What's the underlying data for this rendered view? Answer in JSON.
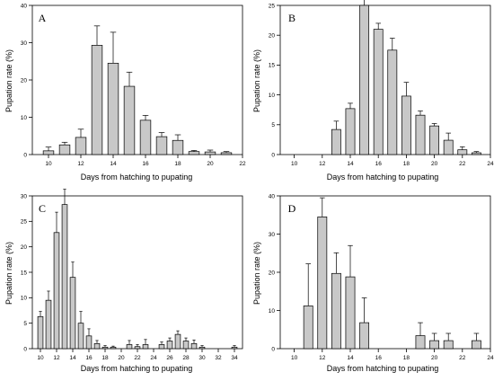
{
  "chart_data": [
    {
      "panel": "A",
      "type": "bar",
      "xlabel": "Days from hatching to pupating",
      "ylabel": "Pupation rate (%)",
      "xlim": [
        9,
        22
      ],
      "ylim": [
        0,
        40
      ],
      "xticks": [
        10,
        12,
        14,
        16,
        18,
        20,
        22
      ],
      "yticks": [
        0,
        10,
        20,
        30,
        40
      ],
      "x": [
        10,
        11,
        12,
        13,
        14,
        15,
        16,
        17,
        18,
        19,
        20,
        21
      ],
      "values": [
        1.0,
        2.6,
        4.6,
        29.3,
        24.5,
        18.3,
        9.2,
        4.8,
        3.8,
        0.8,
        0.7,
        0.5
      ],
      "errors": [
        1.0,
        0.7,
        2.2,
        5.2,
        8.3,
        3.8,
        1.3,
        1.1,
        1.5,
        0.3,
        0.5,
        0.3
      ]
    },
    {
      "panel": "B",
      "type": "bar",
      "xlabel": "Days from hatching to pupating",
      "ylabel": "Pupation rate (%)",
      "xlim": [
        9,
        24
      ],
      "ylim": [
        0,
        25
      ],
      "xticks": [
        10,
        12,
        14,
        16,
        18,
        20,
        22,
        24
      ],
      "yticks": [
        0,
        5,
        10,
        15,
        20,
        25
      ],
      "x": [
        13,
        14,
        15,
        16,
        17,
        18,
        19,
        20,
        21,
        22,
        23
      ],
      "values": [
        4.2,
        7.7,
        25.0,
        21.0,
        17.5,
        9.8,
        6.6,
        4.8,
        2.4,
        0.8,
        0.3
      ],
      "errors": [
        1.4,
        0.9,
        1.0,
        1.0,
        2.0,
        2.3,
        0.7,
        0.4,
        1.2,
        0.5,
        0.2
      ]
    },
    {
      "panel": "C",
      "type": "bar",
      "xlabel": "Days from hatching to pupating",
      "ylabel": "Pupation rate (%)",
      "xlim": [
        9,
        35
      ],
      "ylim": [
        0,
        30
      ],
      "xticks": [
        10,
        12,
        14,
        16,
        18,
        20,
        22,
        24,
        26,
        28,
        30,
        32,
        34
      ],
      "yticks": [
        0,
        5,
        10,
        15,
        20,
        25,
        30
      ],
      "x": [
        10,
        11,
        12,
        13,
        14,
        15,
        16,
        17,
        18,
        19,
        21,
        22,
        23,
        25,
        26,
        27,
        28,
        29,
        30,
        34
      ],
      "values": [
        6.3,
        9.5,
        22.8,
        28.3,
        14.0,
        5.0,
        2.5,
        1.0,
        0.3,
        0.3,
        0.8,
        0.4,
        0.8,
        0.8,
        1.5,
        2.8,
        1.5,
        1.0,
        0.3,
        0.3
      ],
      "errors": [
        1.0,
        1.8,
        4.0,
        3.0,
        3.0,
        2.3,
        1.4,
        0.6,
        0.3,
        0.2,
        0.8,
        0.4,
        1.0,
        0.5,
        0.6,
        0.7,
        0.6,
        0.7,
        0.3,
        0.3
      ]
    },
    {
      "panel": "D",
      "type": "bar",
      "xlabel": "Days from hatching to pupating",
      "ylabel": "Pupation rate (%)",
      "xlim": [
        9,
        24
      ],
      "ylim": [
        0,
        40
      ],
      "xticks": [
        10,
        12,
        14,
        16,
        18,
        20,
        22,
        24
      ],
      "yticks": [
        0,
        10,
        20,
        30,
        40
      ],
      "x": [
        11,
        12,
        13,
        14,
        15,
        19,
        20,
        21,
        23
      ],
      "values": [
        11.2,
        34.5,
        19.7,
        18.8,
        6.8,
        3.4,
        2.1,
        2.1,
        2.1
      ],
      "errors": [
        11.0,
        5.0,
        5.4,
        8.2,
        6.5,
        3.4,
        1.9,
        1.9,
        1.9
      ]
    }
  ]
}
